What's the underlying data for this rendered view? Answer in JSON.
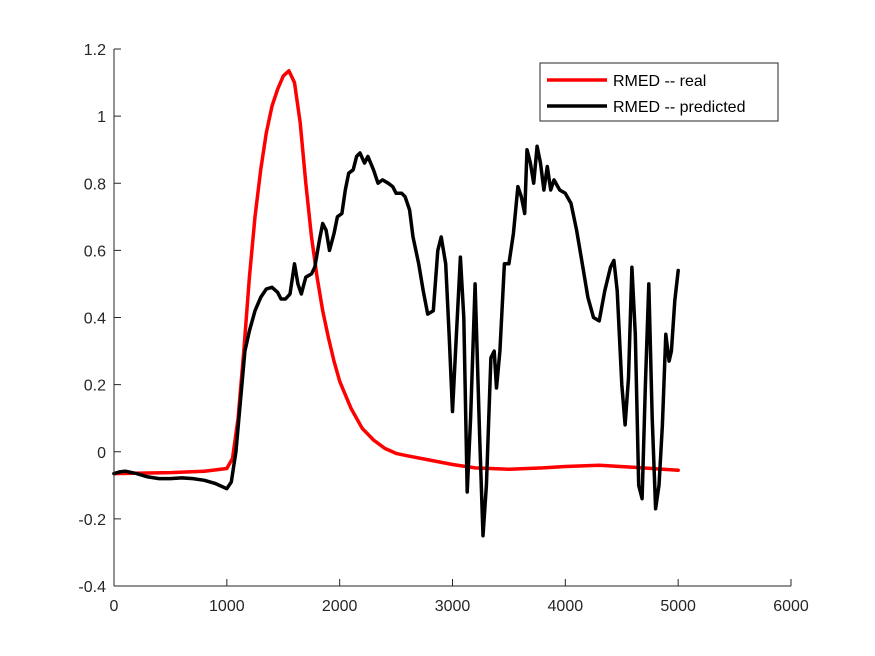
{
  "chart_data": {
    "type": "line",
    "title": "",
    "xlabel": "",
    "ylabel": "",
    "xlim": [
      0,
      6000
    ],
    "ylim": [
      -0.4,
      1.2
    ],
    "xticks": [
      0,
      1000,
      2000,
      3000,
      4000,
      5000,
      6000
    ],
    "yticks": [
      -0.4,
      -0.2,
      0,
      0.2,
      0.4,
      0.6,
      0.8,
      1,
      1.2
    ],
    "xtick_labels": [
      "0",
      "1000",
      "2000",
      "3000",
      "4000",
      "5000",
      "6000"
    ],
    "ytick_labels": [
      "-0.4",
      "-0.2",
      "0",
      "0.2",
      "0.4",
      "0.6",
      "0.8",
      "1",
      "1.2"
    ],
    "grid": false,
    "legend_position": "top-right",
    "series": [
      {
        "name": "RMED -- real",
        "color": "#ff0000",
        "points": [
          [
            0,
            -0.065
          ],
          [
            500,
            -0.062
          ],
          [
            800,
            -0.058
          ],
          [
            1000,
            -0.05
          ],
          [
            1050,
            -0.02
          ],
          [
            1100,
            0.1
          ],
          [
            1150,
            0.3
          ],
          [
            1200,
            0.52
          ],
          [
            1250,
            0.7
          ],
          [
            1300,
            0.84
          ],
          [
            1350,
            0.95
          ],
          [
            1400,
            1.03
          ],
          [
            1450,
            1.08
          ],
          [
            1500,
            1.12
          ],
          [
            1550,
            1.135
          ],
          [
            1600,
            1.1
          ],
          [
            1650,
            0.98
          ],
          [
            1700,
            0.8
          ],
          [
            1750,
            0.64
          ],
          [
            1800,
            0.52
          ],
          [
            1850,
            0.42
          ],
          [
            1900,
            0.34
          ],
          [
            1950,
            0.27
          ],
          [
            2000,
            0.21
          ],
          [
            2100,
            0.13
          ],
          [
            2200,
            0.07
          ],
          [
            2300,
            0.035
          ],
          [
            2400,
            0.01
          ],
          [
            2500,
            -0.005
          ],
          [
            2600,
            -0.012
          ],
          [
            2800,
            -0.025
          ],
          [
            3000,
            -0.038
          ],
          [
            3200,
            -0.048
          ],
          [
            3500,
            -0.052
          ],
          [
            3800,
            -0.048
          ],
          [
            4000,
            -0.044
          ],
          [
            4300,
            -0.04
          ],
          [
            4600,
            -0.046
          ],
          [
            5000,
            -0.055
          ]
        ]
      },
      {
        "name": "RMED -- predicted",
        "color": "#000000",
        "points": [
          [
            0,
            -0.065
          ],
          [
            50,
            -0.06
          ],
          [
            100,
            -0.058
          ],
          [
            200,
            -0.065
          ],
          [
            300,
            -0.075
          ],
          [
            400,
            -0.08
          ],
          [
            500,
            -0.08
          ],
          [
            600,
            -0.078
          ],
          [
            700,
            -0.08
          ],
          [
            800,
            -0.085
          ],
          [
            900,
            -0.095
          ],
          [
            1000,
            -0.11
          ],
          [
            1040,
            -0.09
          ],
          [
            1080,
            0.0
          ],
          [
            1120,
            0.15
          ],
          [
            1160,
            0.3
          ],
          [
            1200,
            0.36
          ],
          [
            1250,
            0.42
          ],
          [
            1300,
            0.46
          ],
          [
            1350,
            0.485
          ],
          [
            1400,
            0.49
          ],
          [
            1450,
            0.475
          ],
          [
            1480,
            0.455
          ],
          [
            1520,
            0.455
          ],
          [
            1560,
            0.47
          ],
          [
            1600,
            0.56
          ],
          [
            1630,
            0.5
          ],
          [
            1660,
            0.47
          ],
          [
            1700,
            0.52
          ],
          [
            1750,
            0.53
          ],
          [
            1780,
            0.55
          ],
          [
            1820,
            0.63
          ],
          [
            1850,
            0.68
          ],
          [
            1880,
            0.66
          ],
          [
            1910,
            0.6
          ],
          [
            1950,
            0.65
          ],
          [
            1980,
            0.7
          ],
          [
            2020,
            0.71
          ],
          [
            2050,
            0.78
          ],
          [
            2080,
            0.83
          ],
          [
            2120,
            0.84
          ],
          [
            2150,
            0.88
          ],
          [
            2180,
            0.89
          ],
          [
            2220,
            0.86
          ],
          [
            2250,
            0.88
          ],
          [
            2300,
            0.84
          ],
          [
            2340,
            0.8
          ],
          [
            2380,
            0.81
          ],
          [
            2430,
            0.8
          ],
          [
            2470,
            0.79
          ],
          [
            2500,
            0.77
          ],
          [
            2550,
            0.77
          ],
          [
            2580,
            0.76
          ],
          [
            2620,
            0.72
          ],
          [
            2650,
            0.64
          ],
          [
            2700,
            0.56
          ],
          [
            2740,
            0.48
          ],
          [
            2780,
            0.41
          ],
          [
            2830,
            0.42
          ],
          [
            2870,
            0.6
          ],
          [
            2900,
            0.64
          ],
          [
            2940,
            0.56
          ],
          [
            2970,
            0.35
          ],
          [
            3000,
            0.12
          ],
          [
            3030,
            0.32
          ],
          [
            3070,
            0.58
          ],
          [
            3100,
            0.4
          ],
          [
            3130,
            -0.12
          ],
          [
            3160,
            0.1
          ],
          [
            3200,
            0.5
          ],
          [
            3240,
            0.05
          ],
          [
            3270,
            -0.25
          ],
          [
            3300,
            -0.1
          ],
          [
            3340,
            0.28
          ],
          [
            3370,
            0.3
          ],
          [
            3390,
            0.19
          ],
          [
            3420,
            0.3
          ],
          [
            3460,
            0.56
          ],
          [
            3500,
            0.56
          ],
          [
            3540,
            0.65
          ],
          [
            3580,
            0.79
          ],
          [
            3610,
            0.76
          ],
          [
            3640,
            0.71
          ],
          [
            3660,
            0.9
          ],
          [
            3690,
            0.86
          ],
          [
            3720,
            0.8
          ],
          [
            3750,
            0.91
          ],
          [
            3780,
            0.86
          ],
          [
            3810,
            0.78
          ],
          [
            3840,
            0.85
          ],
          [
            3870,
            0.78
          ],
          [
            3900,
            0.81
          ],
          [
            3950,
            0.78
          ],
          [
            4000,
            0.77
          ],
          [
            4050,
            0.74
          ],
          [
            4100,
            0.66
          ],
          [
            4150,
            0.56
          ],
          [
            4200,
            0.46
          ],
          [
            4250,
            0.4
          ],
          [
            4300,
            0.39
          ],
          [
            4350,
            0.48
          ],
          [
            4400,
            0.55
          ],
          [
            4430,
            0.57
          ],
          [
            4460,
            0.48
          ],
          [
            4500,
            0.2
          ],
          [
            4530,
            0.08
          ],
          [
            4560,
            0.22
          ],
          [
            4590,
            0.55
          ],
          [
            4620,
            0.35
          ],
          [
            4650,
            -0.1
          ],
          [
            4680,
            -0.14
          ],
          [
            4710,
            0.2
          ],
          [
            4740,
            0.5
          ],
          [
            4770,
            0.1
          ],
          [
            4800,
            -0.17
          ],
          [
            4830,
            -0.1
          ],
          [
            4860,
            0.08
          ],
          [
            4890,
            0.35
          ],
          [
            4920,
            0.27
          ],
          [
            4940,
            0.3
          ],
          [
            4970,
            0.45
          ],
          [
            5000,
            0.54
          ]
        ]
      }
    ]
  }
}
